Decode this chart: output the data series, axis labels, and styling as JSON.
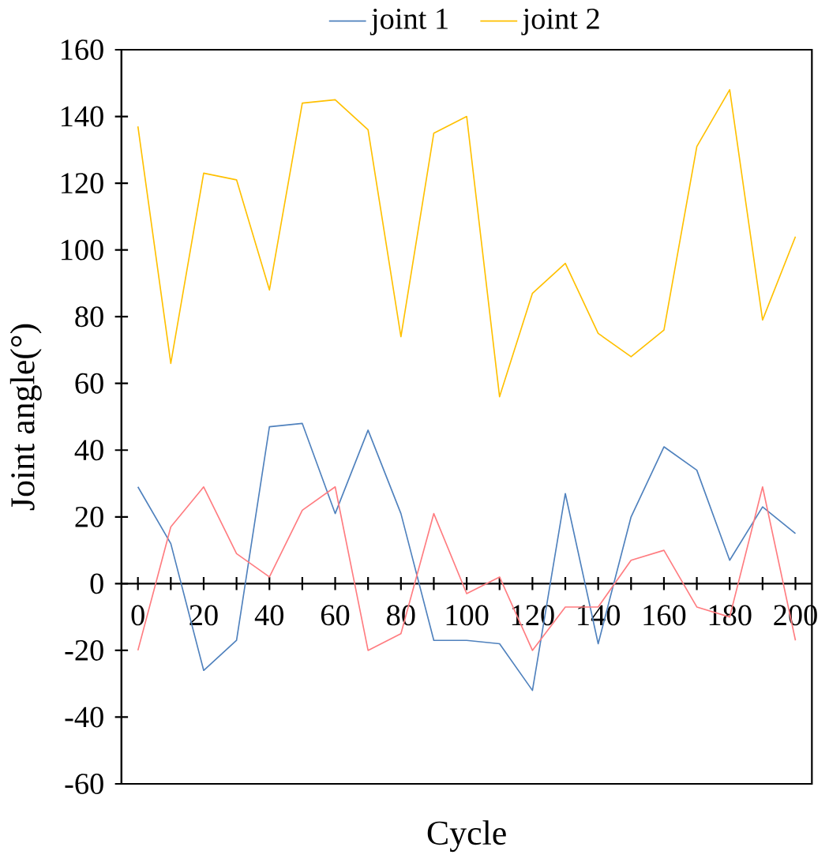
{
  "chart_data": {
    "type": "line",
    "xlabel": "Cycle",
    "ylabel": "Joint angle(°)",
    "categories": [
      "0",
      null,
      "20",
      null,
      "40",
      null,
      "60",
      null,
      "80",
      null,
      "100",
      null,
      "120",
      null,
      "140",
      null,
      "160",
      null,
      "180",
      null,
      "200"
    ],
    "ylim": [
      -60,
      160
    ],
    "yticks": [
      -60,
      -40,
      -20,
      0,
      20,
      40,
      60,
      80,
      100,
      120,
      140,
      160
    ],
    "legend": "top",
    "grid": false,
    "marker": "none",
    "line_style": "solid",
    "series": [
      {
        "name": "joint 1",
        "color": "#4f81bd",
        "values": [
          29,
          12,
          -26,
          -17,
          47,
          48,
          21,
          46,
          21,
          -17,
          -17,
          -18,
          -32,
          27,
          -18,
          20,
          41,
          34,
          7,
          23,
          15
        ]
      },
      {
        "name": "joint 2",
        "color": "#ffc000",
        "values": [
          137,
          66,
          123,
          121,
          88,
          144,
          145,
          136,
          74,
          135,
          140,
          56,
          87,
          96,
          75,
          68,
          76,
          131,
          148,
          79,
          104
        ]
      },
      {
        "color": "#ff7c80",
        "values": [
          -20,
          17,
          29,
          9,
          2,
          22,
          29,
          -20,
          -15,
          21,
          -3,
          2,
          -20,
          -7,
          -7,
          7,
          10,
          -7,
          -10,
          29,
          -17
        ]
      }
    ]
  }
}
